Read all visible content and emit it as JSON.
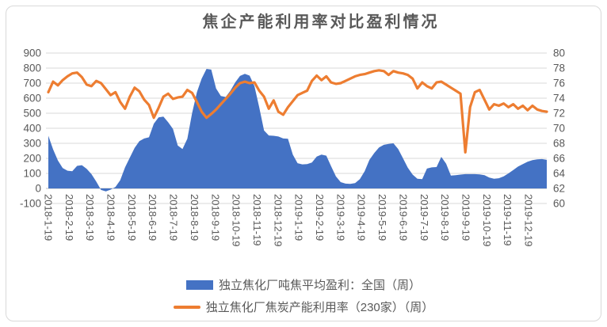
{
  "title": "焦企产能利用率对比盈利情况",
  "colors": {
    "profit_blue": "#4472C4",
    "utilization_orange": "#ED7D31",
    "gridline": "#D9D9D9",
    "axis_line": "#BFBFBF",
    "text_gray": "#595959"
  },
  "chart_data": {
    "type": "area",
    "title": "焦企产能利用率对比盈利情况",
    "grid": true,
    "legend_position": "bottom",
    "x_labels": [
      "2018-1-19",
      "2018-2-19",
      "2018-3-19",
      "2018-4-19",
      "2018-5-19",
      "2018-6-19",
      "2018-7-19",
      "2018-8-19",
      "2018-9-19",
      "2018-10-19",
      "2018-11-19",
      "2018-12-19",
      "2019-1-19",
      "2019-2-19",
      "2019-3-19",
      "2019-4-19",
      "2019-5-19",
      "2019-6-19",
      "2019-7-19",
      "2019-8-19",
      "2019-9-19",
      "2019-10-19",
      "2019-11-19",
      "2019-12-19"
    ],
    "left_axis": {
      "min": -100,
      "max": 900,
      "step": 100,
      "ticks": [
        900,
        800,
        700,
        600,
        500,
        400,
        300,
        200,
        100,
        0,
        -100
      ]
    },
    "right_axis": {
      "min": 60,
      "max": 80,
      "step": 2,
      "ticks": [
        80,
        78,
        76,
        74,
        72,
        70,
        68,
        66,
        64,
        62,
        60
      ]
    },
    "series": [
      {
        "name": "独立焦化厂吨焦平均盈利：全国（周）",
        "type": "area",
        "axis": "left",
        "color": "#4472C4",
        "values": [
          350,
          260,
          185,
          135,
          118,
          115,
          150,
          155,
          130,
          95,
          45,
          -10,
          -20,
          -8,
          10,
          55,
          140,
          205,
          270,
          315,
          332,
          340,
          430,
          472,
          478,
          440,
          395,
          285,
          262,
          330,
          500,
          640,
          730,
          795,
          790,
          665,
          615,
          608,
          650,
          705,
          748,
          762,
          750,
          680,
          540,
          385,
          352,
          350,
          345,
          332,
          330,
          225,
          168,
          160,
          162,
          172,
          212,
          225,
          218,
          148,
          80,
          42,
          32,
          30,
          36,
          62,
          115,
          190,
          235,
          272,
          290,
          296,
          300,
          262,
          200,
          138,
          92,
          65,
          62,
          132,
          140,
          142,
          210,
          165,
          85,
          88,
          92,
          95,
          95,
          95,
          93,
          88,
          72,
          65,
          68,
          80,
          100,
          122,
          145,
          162,
          178,
          188,
          193,
          195,
          190
        ]
      },
      {
        "name": "独立焦化厂焦炭产能利用率（230家）（周）",
        "type": "line",
        "axis": "right",
        "color": "#ED7D31",
        "values": [
          74.8,
          76.2,
          75.7,
          76.4,
          76.9,
          77.3,
          77.4,
          76.8,
          75.8,
          75.6,
          76.3,
          76.0,
          75.2,
          74.4,
          74.8,
          73.5,
          72.6,
          74.2,
          75.4,
          74.9,
          73.8,
          73.1,
          71.4,
          72.7,
          74.2,
          74.6,
          73.9,
          74.1,
          74.2,
          75.1,
          74.7,
          73.5,
          72.2,
          71.4,
          71.9,
          72.5,
          73.2,
          73.9,
          74.6,
          75.4,
          76.0,
          76.2,
          76.0,
          76.1,
          75.0,
          74.2,
          72.6,
          73.7,
          72.2,
          71.8,
          72.8,
          73.6,
          74.4,
          74.7,
          75.0,
          76.3,
          77.0,
          76.4,
          76.9,
          76.1,
          75.9,
          76.0,
          76.3,
          76.6,
          76.9,
          77.1,
          77.2,
          77.4,
          77.6,
          77.7,
          77.6,
          77.1,
          77.6,
          77.4,
          77.3,
          77.1,
          76.6,
          75.3,
          76.1,
          75.6,
          75.3,
          76.1,
          76.2,
          75.8,
          75.4,
          75.0,
          74.6,
          66.8,
          72.8,
          74.8,
          75.1,
          73.8,
          72.5,
          73.2,
          73.0,
          73.3,
          72.8,
          73.2,
          72.6,
          73.0,
          72.4,
          73.0,
          72.5,
          72.3,
          72.2
        ]
      }
    ]
  }
}
